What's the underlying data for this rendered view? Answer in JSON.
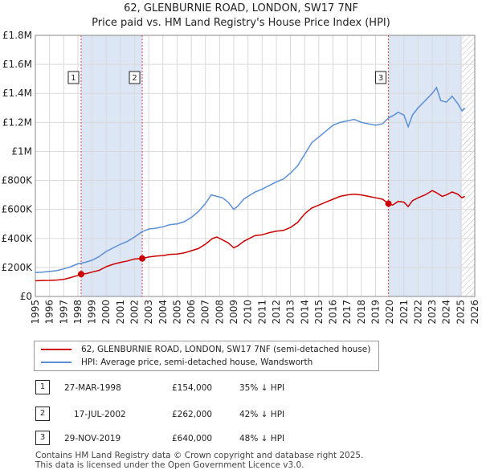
{
  "title_line1": "62, GLENBURNIE ROAD, LONDON, SW17 7NF",
  "title_line2": "Price paid vs. HM Land Registry's House Price Index (HPI)",
  "colors": {
    "property": "#cc0000",
    "hpi": "#5b8fd6",
    "shade": "#dde6f5",
    "grid": "#d9d9d9"
  },
  "legend": [
    "62, GLENBURNIE ROAD, LONDON, SW17 7NF (semi-detached house)",
    "HPI: Average price, semi-detached house, Wandsworth"
  ],
  "transactions": [
    {
      "num": "1",
      "date": "27-MAR-1998",
      "price": "£154,000",
      "hpi": "35% ↓ HPI"
    },
    {
      "num": "2",
      "date": "17-JUL-2002",
      "price": "£262,000",
      "hpi": "42% ↓ HPI"
    },
    {
      "num": "3",
      "date": "29-NOV-2019",
      "price": "£640,000",
      "hpi": "48% ↓ HPI"
    }
  ],
  "footer_line1": "Contains HM Land Registry data © Crown copyright and database right 2025.",
  "footer_line2": "This data is licensed under the Open Government Licence v3.0.",
  "chart_data": {
    "type": "line",
    "xlim": [
      1995,
      2026
    ],
    "ylim": [
      0,
      1800000
    ],
    "x_ticks": [
      "1995",
      "1996",
      "1997",
      "1998",
      "1999",
      "2000",
      "2001",
      "2002",
      "2003",
      "2004",
      "2005",
      "2006",
      "2007",
      "2008",
      "2009",
      "2010",
      "2011",
      "2012",
      "2013",
      "2014",
      "2015",
      "2016",
      "2017",
      "2018",
      "2019",
      "2020",
      "2021",
      "2022",
      "2023",
      "2024",
      "2025",
      "2026"
    ],
    "y_ticks": [
      {
        "value": 0,
        "label": "£0"
      },
      {
        "value": 200000,
        "label": "£200K"
      },
      {
        "value": 400000,
        "label": "£400K"
      },
      {
        "value": 600000,
        "label": "£600K"
      },
      {
        "value": 800000,
        "label": "£800K"
      },
      {
        "value": 1000000,
        "label": "£1M"
      },
      {
        "value": 1200000,
        "label": "£1.2M"
      },
      {
        "value": 1400000,
        "label": "£1.4M"
      },
      {
        "value": 1600000,
        "label": "£1.6M"
      },
      {
        "value": 1800000,
        "label": "£1.8M"
      }
    ],
    "grid": true,
    "shaded_periods": [
      [
        1998.23,
        2002.54
      ],
      [
        2019.91,
        2025.1
      ]
    ],
    "hatch_after": 2025.1,
    "series": [
      {
        "name": "62, GLENBURNIE ROAD, LONDON, SW17 7NF (semi-detached house)",
        "color": "#cc0000",
        "points": [
          [
            1995.0,
            108000
          ],
          [
            1995.5,
            110000
          ],
          [
            1996.0,
            111000
          ],
          [
            1996.5,
            113000
          ],
          [
            1997.0,
            118000
          ],
          [
            1997.5,
            130000
          ],
          [
            1998.0,
            145000
          ],
          [
            1998.23,
            154000
          ],
          [
            1998.6,
            158000
          ],
          [
            1999.0,
            168000
          ],
          [
            1999.5,
            180000
          ],
          [
            2000.0,
            205000
          ],
          [
            2000.5,
            222000
          ],
          [
            2001.0,
            235000
          ],
          [
            2001.5,
            245000
          ],
          [
            2002.0,
            258000
          ],
          [
            2002.54,
            262000
          ],
          [
            2003.0,
            272000
          ],
          [
            2003.5,
            278000
          ],
          [
            2004.0,
            282000
          ],
          [
            2004.5,
            290000
          ],
          [
            2005.0,
            292000
          ],
          [
            2005.5,
            300000
          ],
          [
            2006.0,
            315000
          ],
          [
            2006.5,
            330000
          ],
          [
            2007.0,
            360000
          ],
          [
            2007.5,
            400000
          ],
          [
            2007.8,
            410000
          ],
          [
            2008.2,
            390000
          ],
          [
            2008.6,
            370000
          ],
          [
            2009.0,
            335000
          ],
          [
            2009.3,
            350000
          ],
          [
            2009.7,
            380000
          ],
          [
            2010.0,
            395000
          ],
          [
            2010.5,
            420000
          ],
          [
            2011.0,
            425000
          ],
          [
            2011.5,
            440000
          ],
          [
            2012.0,
            450000
          ],
          [
            2012.5,
            455000
          ],
          [
            2013.0,
            475000
          ],
          [
            2013.5,
            510000
          ],
          [
            2014.0,
            570000
          ],
          [
            2014.5,
            610000
          ],
          [
            2015.0,
            630000
          ],
          [
            2015.5,
            650000
          ],
          [
            2016.0,
            670000
          ],
          [
            2016.5,
            690000
          ],
          [
            2017.0,
            700000
          ],
          [
            2017.5,
            705000
          ],
          [
            2018.0,
            700000
          ],
          [
            2018.5,
            690000
          ],
          [
            2019.0,
            680000
          ],
          [
            2019.5,
            670000
          ],
          [
            2019.91,
            640000
          ],
          [
            2020.2,
            630000
          ],
          [
            2020.6,
            655000
          ],
          [
            2021.0,
            650000
          ],
          [
            2021.3,
            620000
          ],
          [
            2021.6,
            660000
          ],
          [
            2022.0,
            680000
          ],
          [
            2022.5,
            700000
          ],
          [
            2023.0,
            730000
          ],
          [
            2023.3,
            715000
          ],
          [
            2023.7,
            690000
          ],
          [
            2024.0,
            700000
          ],
          [
            2024.4,
            720000
          ],
          [
            2024.8,
            705000
          ],
          [
            2025.1,
            680000
          ],
          [
            2025.3,
            690000
          ]
        ]
      },
      {
        "name": "HPI: Average price, semi-detached house, Wandsworth",
        "color": "#5b8fd6",
        "points": [
          [
            1995.0,
            165000
          ],
          [
            1995.5,
            168000
          ],
          [
            1996.0,
            172000
          ],
          [
            1996.5,
            178000
          ],
          [
            1997.0,
            190000
          ],
          [
            1997.5,
            205000
          ],
          [
            1998.0,
            225000
          ],
          [
            1998.5,
            235000
          ],
          [
            1999.0,
            250000
          ],
          [
            1999.5,
            275000
          ],
          [
            2000.0,
            310000
          ],
          [
            2000.5,
            335000
          ],
          [
            2001.0,
            360000
          ],
          [
            2001.5,
            380000
          ],
          [
            2002.0,
            410000
          ],
          [
            2002.5,
            445000
          ],
          [
            2003.0,
            465000
          ],
          [
            2003.5,
            470000
          ],
          [
            2004.0,
            480000
          ],
          [
            2004.5,
            495000
          ],
          [
            2005.0,
            500000
          ],
          [
            2005.5,
            515000
          ],
          [
            2006.0,
            545000
          ],
          [
            2006.5,
            585000
          ],
          [
            2007.0,
            640000
          ],
          [
            2007.4,
            700000
          ],
          [
            2007.8,
            690000
          ],
          [
            2008.2,
            680000
          ],
          [
            2008.6,
            650000
          ],
          [
            2009.0,
            600000
          ],
          [
            2009.3,
            625000
          ],
          [
            2009.7,
            670000
          ],
          [
            2010.0,
            690000
          ],
          [
            2010.5,
            720000
          ],
          [
            2011.0,
            740000
          ],
          [
            2011.5,
            765000
          ],
          [
            2012.0,
            790000
          ],
          [
            2012.5,
            810000
          ],
          [
            2013.0,
            850000
          ],
          [
            2013.5,
            900000
          ],
          [
            2014.0,
            980000
          ],
          [
            2014.5,
            1060000
          ],
          [
            2015.0,
            1100000
          ],
          [
            2015.5,
            1140000
          ],
          [
            2016.0,
            1180000
          ],
          [
            2016.5,
            1200000
          ],
          [
            2017.0,
            1210000
          ],
          [
            2017.5,
            1220000
          ],
          [
            2018.0,
            1200000
          ],
          [
            2018.5,
            1190000
          ],
          [
            2019.0,
            1180000
          ],
          [
            2019.5,
            1190000
          ],
          [
            2019.91,
            1230000
          ],
          [
            2020.3,
            1250000
          ],
          [
            2020.6,
            1270000
          ],
          [
            2021.0,
            1250000
          ],
          [
            2021.3,
            1170000
          ],
          [
            2021.6,
            1250000
          ],
          [
            2022.0,
            1300000
          ],
          [
            2022.5,
            1350000
          ],
          [
            2023.0,
            1400000
          ],
          [
            2023.3,
            1440000
          ],
          [
            2023.6,
            1350000
          ],
          [
            2024.0,
            1340000
          ],
          [
            2024.4,
            1380000
          ],
          [
            2024.8,
            1330000
          ],
          [
            2025.1,
            1280000
          ],
          [
            2025.3,
            1300000
          ]
        ]
      }
    ],
    "markers": [
      {
        "label": "1",
        "x": 1998.23,
        "y": 154000
      },
      {
        "label": "2",
        "x": 2002.54,
        "y": 262000
      },
      {
        "label": "3",
        "x": 2019.91,
        "y": 640000
      }
    ]
  }
}
